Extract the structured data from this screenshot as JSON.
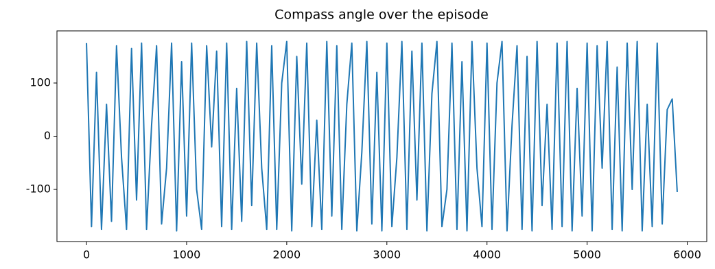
{
  "chart_data": {
    "type": "line",
    "title": "Compass angle over the episode",
    "x": [
      0,
      50,
      100,
      150,
      200,
      250,
      300,
      350,
      400,
      450,
      500,
      550,
      600,
      650,
      700,
      750,
      800,
      850,
      900,
      950,
      1000,
      1050,
      1100,
      1150,
      1200,
      1250,
      1300,
      1350,
      1400,
      1450,
      1500,
      1550,
      1600,
      1650,
      1700,
      1750,
      1800,
      1850,
      1900,
      1950,
      2000,
      2050,
      2100,
      2150,
      2200,
      2250,
      2300,
      2350,
      2400,
      2450,
      2500,
      2550,
      2600,
      2650,
      2700,
      2750,
      2800,
      2850,
      2900,
      2950,
      3000,
      3050,
      3100,
      3150,
      3200,
      3250,
      3300,
      3350,
      3400,
      3450,
      3500,
      3550,
      3600,
      3650,
      3700,
      3750,
      3800,
      3850,
      3900,
      3950,
      4000,
      4050,
      4100,
      4150,
      4200,
      4250,
      4300,
      4350,
      4400,
      4450,
      4500,
      4550,
      4600,
      4650,
      4700,
      4750,
      4800,
      4850,
      4900,
      4950,
      5000,
      5050,
      5100,
      5150,
      5200,
      5250,
      5300,
      5350,
      5400,
      5450,
      5500,
      5550,
      5600,
      5650,
      5700,
      5750,
      5800,
      5850,
      5900
    ],
    "values": [
      175,
      -170,
      120,
      -175,
      60,
      -160,
      170,
      -40,
      -175,
      165,
      -120,
      175,
      -175,
      20,
      170,
      -165,
      -60,
      175,
      -178,
      140,
      -150,
      175,
      -100,
      -175,
      170,
      -20,
      160,
      -170,
      175,
      -175,
      90,
      -160,
      178,
      -130,
      175,
      -60,
      -175,
      170,
      -175,
      100,
      178,
      -178,
      150,
      -90,
      175,
      -170,
      30,
      -175,
      178,
      -150,
      170,
      -175,
      60,
      175,
      -178,
      -30,
      178,
      -165,
      120,
      -178,
      175,
      -170,
      -40,
      178,
      -175,
      160,
      -120,
      175,
      -178,
      80,
      178,
      -170,
      -100,
      175,
      -175,
      140,
      -178,
      178,
      -60,
      -170,
      175,
      -175,
      100,
      178,
      -178,
      20,
      170,
      -175,
      150,
      -178,
      178,
      -130,
      60,
      -175,
      175,
      -170,
      178,
      -178,
      90,
      -150,
      175,
      -178,
      170,
      -60,
      178,
      -175,
      130,
      -178,
      175,
      -100,
      178,
      -178,
      60,
      -170,
      175,
      -165,
      50,
      70,
      -105
    ],
    "color": "#1f77b4",
    "xlim": [
      -295,
      6195
    ],
    "xticks": [
      0,
      1000,
      2000,
      3000,
      4000,
      5000,
      6000
    ],
    "ylim": [
      -198,
      198
    ],
    "yticks": [
      -100,
      0,
      100
    ]
  }
}
